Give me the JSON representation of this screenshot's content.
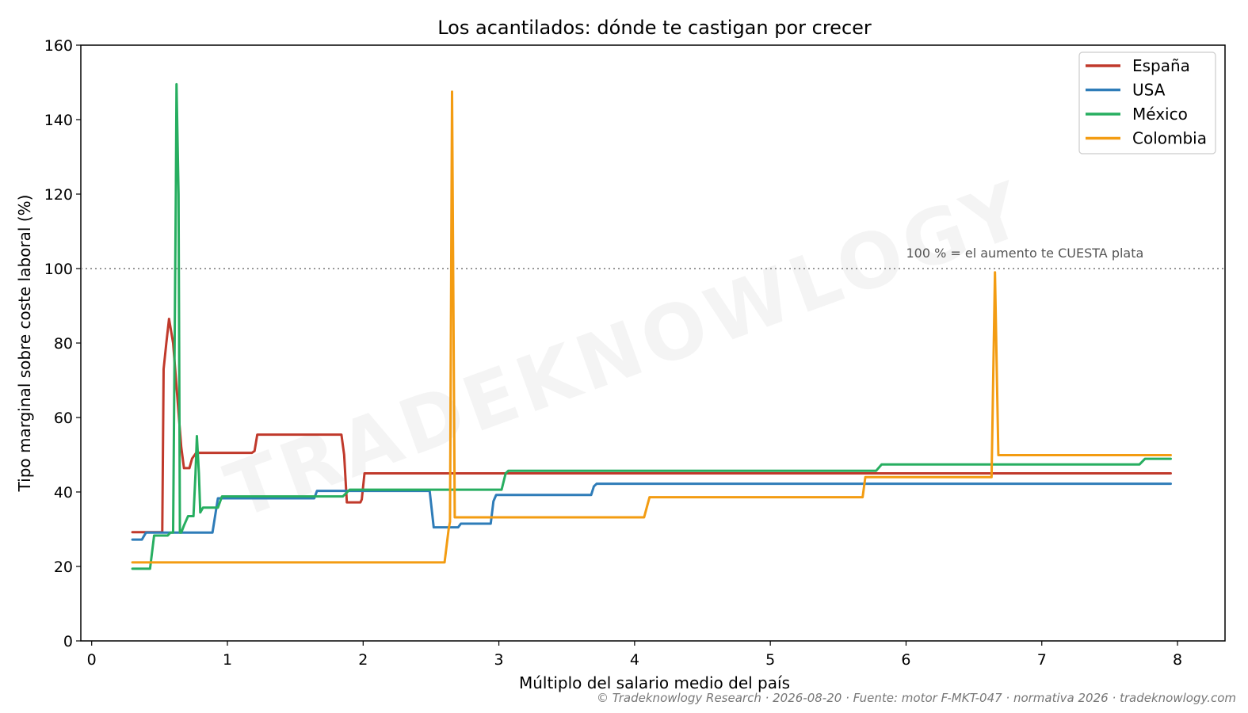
{
  "chart_data": {
    "type": "line",
    "title": "Los acantilados: dónde te castigan por crecer",
    "xlabel": "Múltiplo del salario medio del país",
    "ylabel": "Tipo marginal sobre coste laboral (%)",
    "xlim": [
      -0.08,
      8.35
    ],
    "ylim": [
      0,
      160
    ],
    "x_ticks": [
      0,
      1,
      2,
      3,
      4,
      5,
      6,
      7,
      8
    ],
    "y_ticks": [
      0,
      20,
      40,
      60,
      80,
      100,
      120,
      140,
      160
    ],
    "grid": false,
    "legend_position": "top-right",
    "reference_line": {
      "y": 100,
      "label": "100 % = el aumento te CUESTA plata",
      "style": "dotted"
    },
    "series": [
      {
        "name": "España",
        "color": "#c0392b",
        "points": [
          [
            0.3,
            29.2
          ],
          [
            0.52,
            29.2
          ],
          [
            0.53,
            73
          ],
          [
            0.55,
            80
          ],
          [
            0.57,
            86.5
          ],
          [
            0.6,
            80
          ],
          [
            0.63,
            66
          ],
          [
            0.66,
            52
          ],
          [
            0.68,
            46.4
          ],
          [
            0.72,
            46.4
          ],
          [
            0.74,
            49
          ],
          [
            0.77,
            50.5
          ],
          [
            1.18,
            50.5
          ],
          [
            1.2,
            51
          ],
          [
            1.22,
            55.4
          ],
          [
            1.84,
            55.4
          ],
          [
            1.86,
            50
          ],
          [
            1.88,
            37.2
          ],
          [
            1.98,
            37.2
          ],
          [
            1.99,
            38
          ],
          [
            2.01,
            45
          ],
          [
            7.95,
            45
          ]
        ]
      },
      {
        "name": "USA",
        "color": "#2e7cb8",
        "points": [
          [
            0.3,
            27.2
          ],
          [
            0.37,
            27.2
          ],
          [
            0.4,
            29.1
          ],
          [
            0.89,
            29.1
          ],
          [
            0.93,
            38.3
          ],
          [
            1.64,
            38.3
          ],
          [
            1.66,
            40.3
          ],
          [
            2.49,
            40.3
          ],
          [
            2.52,
            30.5
          ],
          [
            2.7,
            30.5
          ],
          [
            2.72,
            31.5
          ],
          [
            2.94,
            31.5
          ],
          [
            2.96,
            37.5
          ],
          [
            2.98,
            39.2
          ],
          [
            3.68,
            39.2
          ],
          [
            3.7,
            41.5
          ],
          [
            3.72,
            42.2
          ],
          [
            7.95,
            42.2
          ]
        ]
      },
      {
        "name": "México",
        "color": "#27ae60",
        "points": [
          [
            0.3,
            19.4
          ],
          [
            0.43,
            19.4
          ],
          [
            0.46,
            28.3
          ],
          [
            0.56,
            28.3
          ],
          [
            0.58,
            29.1
          ],
          [
            0.6,
            29.1
          ],
          [
            0.62,
            120
          ],
          [
            0.625,
            149.5
          ],
          [
            0.64,
            120
          ],
          [
            0.65,
            29.1
          ],
          [
            0.66,
            29.1
          ],
          [
            0.68,
            31
          ],
          [
            0.71,
            33.5
          ],
          [
            0.75,
            33.5
          ],
          [
            0.765,
            45
          ],
          [
            0.775,
            55
          ],
          [
            0.79,
            45
          ],
          [
            0.8,
            34.5
          ],
          [
            0.82,
            35.8
          ],
          [
            0.93,
            35.8
          ],
          [
            0.96,
            38.8
          ],
          [
            1.85,
            38.8
          ],
          [
            1.9,
            40.6
          ],
          [
            3.02,
            40.6
          ],
          [
            3.05,
            45
          ],
          [
            3.07,
            45.7
          ],
          [
            5.78,
            45.7
          ],
          [
            5.82,
            47.4
          ],
          [
            7.72,
            47.4
          ],
          [
            7.76,
            48.9
          ],
          [
            7.95,
            48.9
          ]
        ]
      },
      {
        "name": "Colombia",
        "color": "#f39c12",
        "points": [
          [
            0.3,
            21.1
          ],
          [
            2.6,
            21.1
          ],
          [
            2.63,
            30
          ],
          [
            2.64,
            32
          ],
          [
            2.655,
            147.5
          ],
          [
            2.675,
            33.2
          ],
          [
            4.07,
            33.2
          ],
          [
            4.11,
            38.6
          ],
          [
            5.68,
            38.6
          ],
          [
            5.7,
            44
          ],
          [
            6.63,
            44
          ],
          [
            6.655,
            99
          ],
          [
            6.68,
            49.9
          ],
          [
            7.95,
            49.9
          ]
        ]
      }
    ]
  },
  "watermark": "TRADEKNOWLOGY",
  "footer": "© Tradeknowlogy Research   ·   2026-08-20   ·   Fuente: motor F-MKT-047 · normativa 2026   ·   tradeknowlogy.com"
}
